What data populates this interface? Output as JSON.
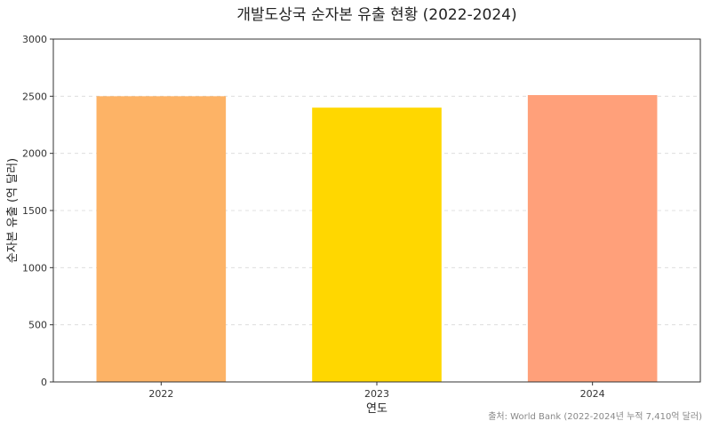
{
  "chart_data": {
    "type": "bar",
    "title": "개발도상국 순자본 유출 현황 (2022-2024)",
    "xlabel": "연도",
    "ylabel": "순자본 유출 (억 달러)",
    "categories": [
      "2022",
      "2023",
      "2024"
    ],
    "values": [
      2500,
      2400,
      2510
    ],
    "bar_colors": [
      "#FDB366",
      "#FFD700",
      "#FFA07A"
    ],
    "ylim": [
      0,
      3000
    ],
    "yticks": [
      "0",
      "500",
      "1000",
      "1500",
      "2000",
      "2500",
      "3000"
    ],
    "grid": true,
    "legend": "none"
  },
  "source_note": "출처: World Bank (2022-2024년 누적 7,410억 달러)"
}
